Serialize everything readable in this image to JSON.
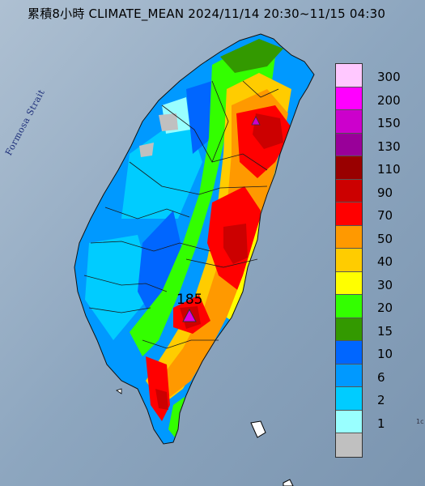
{
  "title": "累積8小時 CLIMATE_MEAN 2024/11/14 20:30~11/15 04:30",
  "strait_label": "Formosa Strait",
  "peak": {
    "value": "185",
    "marker_color": "#e000e0"
  },
  "corner_mark": "1c",
  "legend": {
    "items": [
      {
        "label": "300",
        "color": "#ffc8ff"
      },
      {
        "label": "200",
        "color": "#ff00ff"
      },
      {
        "label": "150",
        "color": "#cc00cc"
      },
      {
        "label": "130",
        "color": "#990099"
      },
      {
        "label": "110",
        "color": "#990000"
      },
      {
        "label": "90",
        "color": "#cc0000"
      },
      {
        "label": "70",
        "color": "#ff0000"
      },
      {
        "label": "50",
        "color": "#ff9900"
      },
      {
        "label": "40",
        "color": "#ffcc00"
      },
      {
        "label": "30",
        "color": "#ffff00"
      },
      {
        "label": "20",
        "color": "#33ff00"
      },
      {
        "label": "15",
        "color": "#339900"
      },
      {
        "label": "10",
        "color": "#0066ff"
      },
      {
        "label": "6",
        "color": "#0099ff"
      },
      {
        "label": "2",
        "color": "#00ccff"
      },
      {
        "label": "1",
        "color": "#99ffff"
      },
      {
        "label": "",
        "color": "#c0c0c0"
      }
    ]
  }
}
